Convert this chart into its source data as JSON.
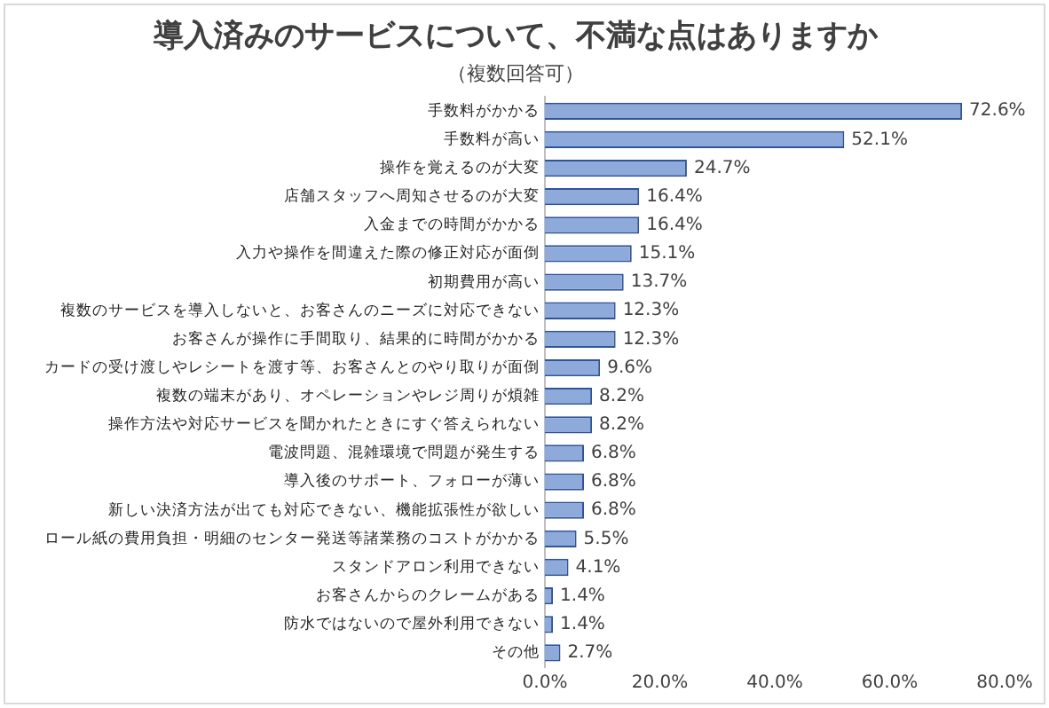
{
  "chart_data": {
    "type": "bar",
    "orientation": "horizontal",
    "title": "導入済みのサービスについて、不満な点はありますか",
    "subtitle": "（複数回答可）",
    "categories": [
      "手数料がかかる",
      "手数料が高い",
      "操作を覚えるのが大変",
      "店舗スタッフへ周知させるのが大変",
      "入金までの時間がかかる",
      "入力や操作を間違えた際の修正対応が面倒",
      "初期費用が高い",
      "複数のサービスを導入しないと、お客さんのニーズに対応できない",
      "お客さんが操作に手間取り、結果的に時間がかかる",
      "カードの受け渡しやレシートを渡す等、お客さんとのやり取りが面倒",
      "複数の端末があり、オペレーションやレジ周りが煩雑",
      "操作方法や対応サービスを聞かれたときにすぐ答えられない",
      "電波問題、混雑環境で問題が発生する",
      "導入後のサポート、フォローが薄い",
      "新しい決済方法が出ても対応できない、機能拡張性が欲しい",
      "ロール紙の費用負担・明細のセンター発送等諸業務のコストがかかる",
      "スタンドアロン利用できない",
      "お客さんからのクレームがある",
      "防水ではないので屋外利用できない",
      "その他"
    ],
    "values": [
      72.6,
      52.1,
      24.7,
      16.4,
      16.4,
      15.1,
      13.7,
      12.3,
      12.3,
      9.6,
      8.2,
      8.2,
      6.8,
      6.8,
      6.8,
      5.5,
      4.1,
      1.4,
      1.4,
      2.7
    ],
    "value_labels": [
      "72.6%",
      "52.1%",
      "24.7%",
      "16.4%",
      "16.4%",
      "15.1%",
      "13.7%",
      "12.3%",
      "12.3%",
      "9.6%",
      "8.2%",
      "8.2%",
      "6.8%",
      "6.8%",
      "6.8%",
      "5.5%",
      "4.1%",
      "1.4%",
      "1.4%",
      "2.7%"
    ],
    "color": "#8eaadb",
    "xlim": [
      0,
      80
    ],
    "xticks": [
      {
        "value": 0,
        "label": "0.0%"
      },
      {
        "value": 20,
        "label": "20.0%"
      },
      {
        "value": 40,
        "label": "40.0%"
      },
      {
        "value": 60,
        "label": "60.0%"
      },
      {
        "value": 80,
        "label": "80.0%"
      }
    ],
    "grid": false,
    "legend": false
  }
}
